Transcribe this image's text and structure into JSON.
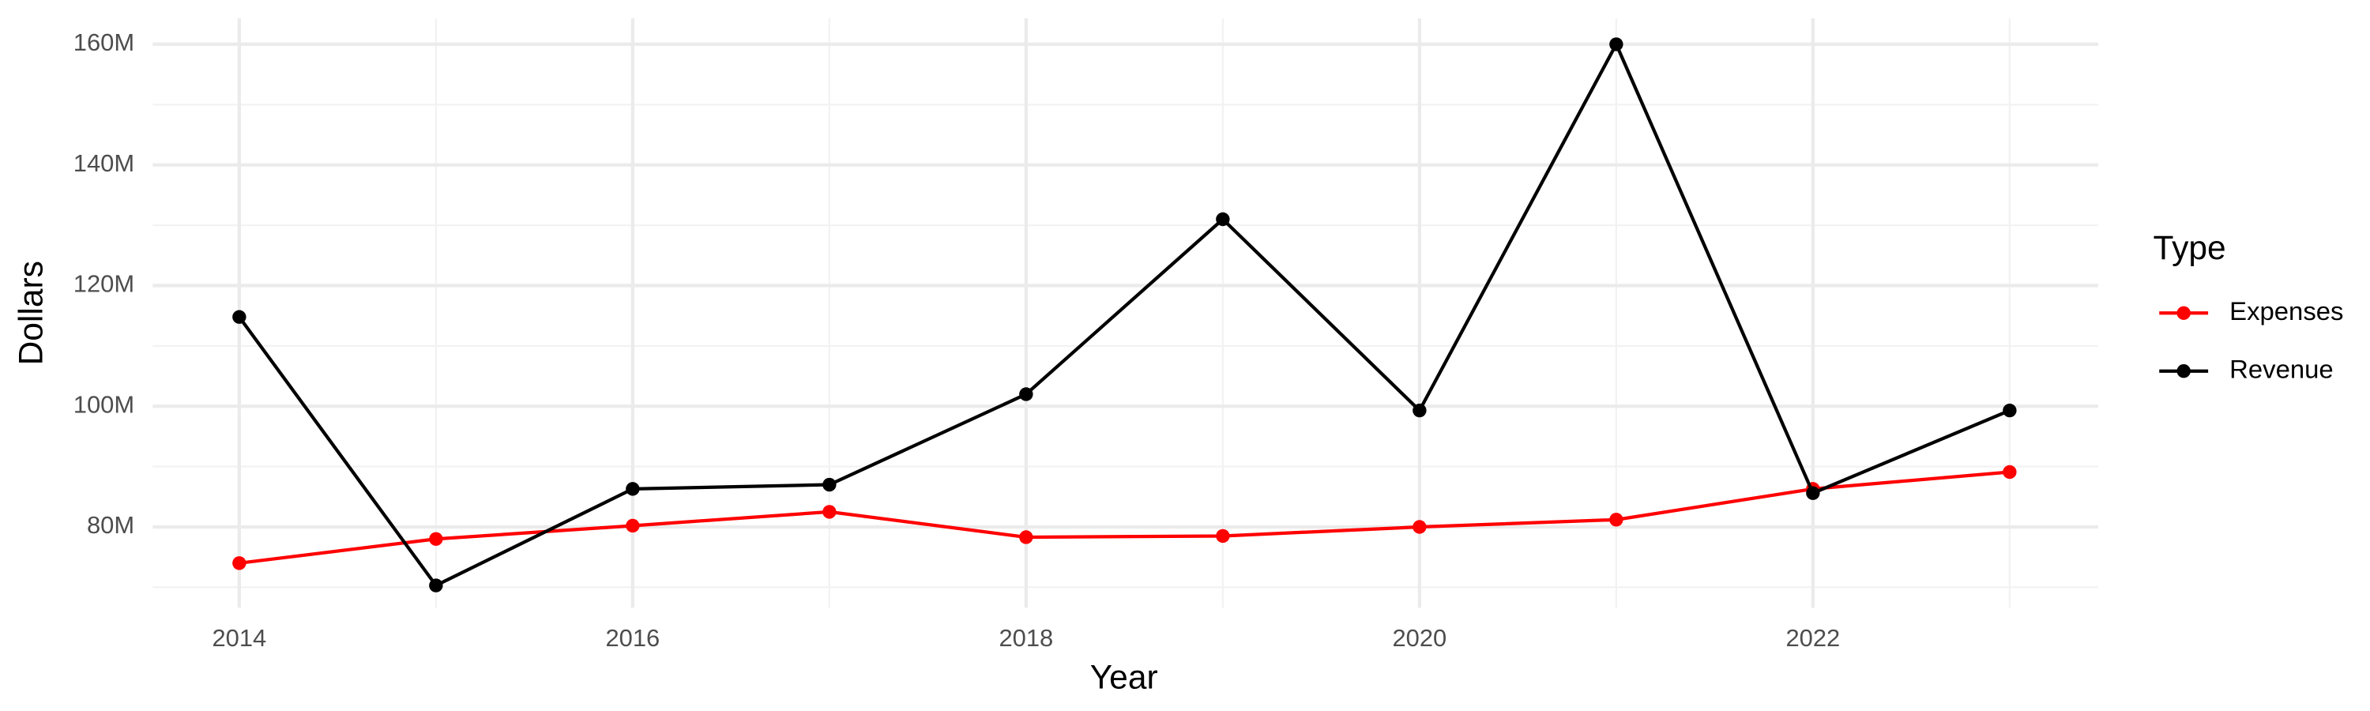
{
  "chart_data": {
    "type": "line",
    "x_label": "Year",
    "y_label": "Dollars",
    "x": [
      2014,
      2015,
      2016,
      2017,
      2018,
      2019,
      2020,
      2021,
      2022,
      2023
    ],
    "series": [
      {
        "name": "Expenses",
        "color": "#ff0000",
        "values": [
          74,
          78,
          80.2,
          82.5,
          78.3,
          78.5,
          80,
          81.2,
          86.3,
          89.1
        ]
      },
      {
        "name": "Revenue",
        "color": "#000000",
        "values": [
          114.8,
          70.3,
          86.3,
          87,
          102,
          131,
          99.3,
          160,
          85.6,
          99.3
        ]
      }
    ],
    "xlim": [
      2013.56,
      2023.45
    ],
    "xticks": [
      2014,
      2016,
      2018,
      2020,
      2022
    ],
    "ylim": [
      66.6,
      164.3
    ],
    "yticks": [
      {
        "value": 80,
        "label": "80M"
      },
      {
        "value": 100,
        "label": "100M"
      },
      {
        "value": 120,
        "label": "120M"
      },
      {
        "value": 140,
        "label": "140M"
      },
      {
        "value": 160,
        "label": "160M"
      }
    ],
    "grid": true,
    "minor_grid": true,
    "legend_title": "Type",
    "legend_position": "right"
  }
}
